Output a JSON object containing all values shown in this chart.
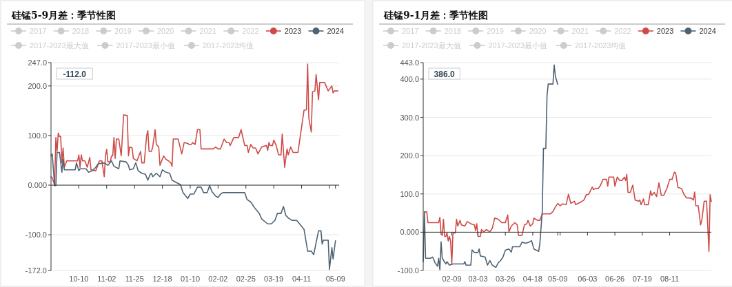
{
  "chart_data": [
    {
      "type": "line",
      "title": "硅锰5-9月差：季节性图",
      "legend": "top",
      "grid": "y",
      "xlim": [
        "2023-09-17",
        "2024-05-12"
      ],
      "xticks": [
        {
          "value": "2023-10-10",
          "label": "10-10"
        },
        {
          "value": "2023-11-02",
          "label": "11-02"
        },
        {
          "value": "2023-11-25",
          "label": "11-25"
        },
        {
          "value": "2023-12-18",
          "label": "12-18"
        },
        {
          "value": "2024-01-10",
          "label": "01-10"
        },
        {
          "value": "2024-02-02",
          "label": "02-02"
        },
        {
          "value": "2024-02-25",
          "label": "02-25"
        },
        {
          "value": "2024-03-19",
          "label": "03-19"
        },
        {
          "value": "2024-04-11",
          "label": "04-11"
        },
        {
          "value": "2024-05-04",
          "label": null
        },
        {
          "value": "2024-05-09",
          "label": "05-09"
        }
      ],
      "ylim": [
        -172,
        247
      ],
      "yticks": [
        {
          "value": -172,
          "label": "-172.0"
        },
        {
          "value": -100,
          "label": "-100.0"
        },
        {
          "value": 0,
          "label": "0.000"
        },
        {
          "value": 100,
          "label": "100.0"
        },
        {
          "value": 200,
          "label": "200.0"
        },
        {
          "value": 247,
          "label": "247.0"
        }
      ],
      "annotations": [
        "-112.0"
      ],
      "series": [
        {
          "name": "2017",
          "color": "#cccccc"
        },
        {
          "name": "2018",
          "color": "#cccccc"
        },
        {
          "name": "2019",
          "color": "#cccccc"
        },
        {
          "name": "2020",
          "color": "#cccccc"
        },
        {
          "name": "2021",
          "color": "#cccccc"
        },
        {
          "name": "2022",
          "color": "#cccccc"
        },
        {
          "name": "2023",
          "color": "#cd4b48",
          "x": [
            "2023-09-17",
            "2023-09-18",
            "2023-09-20",
            "2023-09-21",
            "2023-09-22",
            "2023-09-23",
            "2023-09-24",
            "2023-09-25",
            "2023-09-26",
            "2023-09-27",
            "2023-09-28",
            "2023-09-30",
            "2023-10-09",
            "2023-10-10",
            "2023-10-11",
            "2023-10-12",
            "2023-10-13",
            "2023-10-15",
            "2023-10-17",
            "2023-10-19",
            "2023-10-20",
            "2023-10-24",
            "2023-10-27",
            "2023-10-29",
            "2023-10-31",
            "2023-11-01",
            "2023-11-02",
            "2023-11-03",
            "2023-11-05",
            "2023-11-06",
            "2023-11-07",
            "2023-11-08",
            "2023-11-09",
            "2023-11-10",
            "2023-11-12",
            "2023-11-14",
            "2023-11-16",
            "2023-11-19",
            "2023-11-20",
            "2023-11-21",
            "2023-11-23",
            "2023-11-24",
            "2023-11-27",
            "2023-11-30",
            "2023-12-01",
            "2023-12-03",
            "2023-12-05",
            "2023-12-06",
            "2023-12-07",
            "2023-12-09",
            "2023-12-10",
            "2023-12-12",
            "2023-12-13",
            "2023-12-15",
            "2023-12-16",
            "2023-12-19",
            "2023-12-21",
            "2023-12-23",
            "2023-12-25",
            "2023-12-26",
            "2023-12-27",
            "2023-12-31",
            "2024-01-03",
            "2024-01-05",
            "2024-01-08",
            "2024-01-09",
            "2024-01-11",
            "2024-01-12",
            "2024-01-14",
            "2024-01-16",
            "2024-01-18",
            "2024-01-19",
            "2024-01-29",
            "2024-01-31",
            "2024-02-02",
            "2024-02-04",
            "2024-02-07",
            "2024-02-09",
            "2024-02-11",
            "2024-02-12",
            "2024-02-15",
            "2024-02-19",
            "2024-02-21",
            "2024-02-24",
            "2024-02-26",
            "2024-02-27",
            "2024-02-29",
            "2024-03-02",
            "2024-03-04",
            "2024-03-06",
            "2024-03-09",
            "2024-03-13",
            "2024-03-14",
            "2024-03-15",
            "2024-03-16",
            "2024-03-18",
            "2024-03-19",
            "2024-03-21",
            "2024-03-23",
            "2024-03-25",
            "2024-03-26",
            "2024-03-28",
            "2024-03-30",
            "2024-03-31",
            "2024-04-02",
            "2024-04-04",
            "2024-04-08",
            "2024-04-10",
            "2024-04-13",
            "2024-04-15",
            "2024-04-16",
            "2024-04-17",
            "2024-04-19",
            "2024-04-20",
            "2024-04-22",
            "2024-04-23",
            "2024-04-25",
            "2024-04-26",
            "2024-04-30",
            "2024-05-03",
            "2024-05-06",
            "2024-05-07",
            "2024-05-08",
            "2024-05-11"
          ],
          "values": [
            17,
            15,
            0,
            96,
            68,
            105,
            98,
            98,
            45,
            75,
            36,
            49,
            49,
            61,
            36,
            61,
            49,
            49,
            36,
            56,
            31,
            29,
            49,
            49,
            17,
            59,
            72,
            47,
            47,
            59,
            59,
            96,
            54,
            93,
            93,
            59,
            142,
            140,
            59,
            77,
            75,
            54,
            49,
            68,
            45,
            45,
            100,
            110,
            68,
            68,
            77,
            112,
            82,
            77,
            40,
            59,
            52,
            49,
            45,
            38,
            93,
            93,
            63,
            86,
            84,
            82,
            82,
            86,
            82,
            112,
            112,
            73,
            73,
            77,
            73,
            73,
            93,
            86,
            86,
            80,
            96,
            96,
            112,
            80,
            80,
            66,
            82,
            75,
            75,
            63,
            77,
            80,
            70,
            86,
            80,
            80,
            91,
            80,
            61,
            61,
            103,
            36,
            73,
            61,
            77,
            66,
            66,
            100,
            151,
            152,
            244,
            135,
            107,
            188,
            190,
            223,
            172,
            207,
            207,
            190,
            200,
            186,
            190,
            190
          ]
        },
        {
          "name": "2024",
          "color": "#4f6272",
          "x": [
            "2023-09-17",
            "2023-09-18",
            "2023-09-20",
            "2023-09-21",
            "2023-09-22",
            "2023-09-24",
            "2023-09-26",
            "2023-09-27",
            "2023-09-28",
            "2023-10-07",
            "2023-10-08",
            "2023-10-10",
            "2023-10-11",
            "2023-10-16",
            "2023-10-18",
            "2023-10-21",
            "2023-10-24",
            "2023-10-26",
            "2023-10-31",
            "2023-11-03",
            "2023-11-06",
            "2023-11-08",
            "2023-11-12",
            "2023-11-13",
            "2023-11-18",
            "2023-11-20",
            "2023-11-21",
            "2023-11-24",
            "2023-11-26",
            "2023-11-28",
            "2023-12-01",
            "2023-12-04",
            "2023-12-06",
            "2023-12-08",
            "2023-12-09",
            "2023-12-10",
            "2023-12-13",
            "2023-12-16",
            "2023-12-18",
            "2023-12-21",
            "2023-12-24",
            "2023-12-26",
            "2023-12-29",
            "2024-01-02",
            "2024-01-04",
            "2024-01-08",
            "2024-01-10",
            "2024-01-13",
            "2024-01-16",
            "2024-01-19",
            "2024-01-21",
            "2024-01-24",
            "2024-01-26",
            "2024-01-28",
            "2024-01-31",
            "2024-02-02",
            "2024-02-04",
            "2024-02-06",
            "2024-02-24",
            "2024-02-26",
            "2024-02-29",
            "2024-03-03",
            "2024-03-07",
            "2024-03-09",
            "2024-03-14",
            "2024-03-17",
            "2024-03-20",
            "2024-03-22",
            "2024-03-25",
            "2024-03-27",
            "2024-03-29",
            "2024-03-31",
            "2024-04-03",
            "2024-04-07",
            "2024-04-10",
            "2024-04-13",
            "2024-04-16",
            "2024-04-19",
            "2024-04-21",
            "2024-04-25",
            "2024-04-27",
            "2024-04-28",
            "2024-04-29",
            "2024-05-03",
            "2024-05-04",
            "2024-05-06",
            "2024-05-07",
            "2024-05-09"
          ],
          "values": [
            59,
            63,
            -1,
            -1,
            66,
            66,
            26,
            52,
            31,
            31,
            45,
            29,
            33,
            33,
            26,
            29,
            36,
            43,
            45,
            40,
            49,
            38,
            33,
            49,
            47,
            40,
            31,
            33,
            45,
            29,
            24,
            22,
            10,
            22,
            24,
            17,
            24,
            17,
            31,
            26,
            24,
            10,
            6,
            1,
            -15,
            -27,
            -18,
            -18,
            -4,
            -4,
            -15,
            -15,
            -1,
            -13,
            -22,
            -25,
            -18,
            -15,
            -15,
            -29,
            -34,
            -45,
            -57,
            -68,
            -78,
            -78,
            -71,
            -57,
            -57,
            -43,
            -61,
            -66,
            -71,
            -71,
            -80,
            -89,
            -133,
            -133,
            -140,
            -92,
            -92,
            -119,
            -111,
            -111,
            -170,
            -126,
            -149,
            -112
          ]
        },
        {
          "name": "2017-2023最大值",
          "color": "#cccccc"
        },
        {
          "name": "2017-2023最小值",
          "color": "#cccccc"
        },
        {
          "name": "2017-2023均值",
          "color": "#cccccc"
        }
      ]
    },
    {
      "type": "line",
      "title": "硅锰9-1月差：季节性图",
      "legend": "top",
      "grid": "y",
      "xlim": [
        "--01-16",
        "--09-15"
      ],
      "xticks": [
        {
          "value": "--02-09",
          "label": "02-09"
        },
        {
          "value": "--03-03",
          "label": "03-03"
        },
        {
          "value": "--03-26",
          "label": "03-26"
        },
        {
          "value": "--04-18",
          "label": "04-18"
        },
        {
          "value": "--05-09",
          "label": "05-09"
        },
        {
          "value": "--05-11",
          "label": null
        },
        {
          "value": "--06-03",
          "label": "06-03"
        },
        {
          "value": "--06-26",
          "label": "06-26"
        },
        {
          "value": "--07-19",
          "label": "07-19"
        },
        {
          "value": "--08-11",
          "label": "08-11"
        }
      ],
      "ylim": [
        -100,
        443
      ],
      "yticks": [
        {
          "value": -100,
          "label": "-100.0"
        },
        {
          "value": 0,
          "label": "0.000"
        },
        {
          "value": 100,
          "label": "100.0"
        },
        {
          "value": 200,
          "label": "200.0"
        },
        {
          "value": 300,
          "label": "300.0"
        },
        {
          "value": 400,
          "label": "400.0"
        },
        {
          "value": 443,
          "label": "443.0"
        }
      ],
      "annotations": [
        "386.0"
      ],
      "series": [
        {
          "name": "2017",
          "color": "#cccccc"
        },
        {
          "name": "2018",
          "color": "#cccccc"
        },
        {
          "name": "2019",
          "color": "#cccccc"
        },
        {
          "name": "2020",
          "color": "#cccccc"
        },
        {
          "name": "2021",
          "color": "#cccccc"
        },
        {
          "name": "2022",
          "color": "#cccccc"
        },
        {
          "name": "2023",
          "color": "#cd4b48",
          "x": [
            "--01-17",
            "--01-19",
            "--01-20",
            "--01-29",
            "--01-30",
            "--01-31",
            "--02-01",
            "--02-02",
            "--02-03",
            "--02-04",
            "--02-05",
            "--02-06",
            "--02-07",
            "--02-08",
            "--02-09",
            "--02-10",
            "--02-12",
            "--02-13",
            "--02-14",
            "--02-16",
            "--02-17",
            "--02-20",
            "--02-22",
            "--02-25",
            "--02-28",
            "--03-01",
            "--03-02",
            "--03-03",
            "--03-05",
            "--03-06",
            "--03-08",
            "--03-10",
            "--03-13",
            "--03-15",
            "--03-17",
            "--03-20",
            "--03-23",
            "--03-26",
            "--03-28",
            "--03-29",
            "--03-31",
            "--04-03",
            "--04-05",
            "--04-06",
            "--04-09",
            "--04-11",
            "--04-13",
            "--04-14",
            "--04-16",
            "--04-18",
            "--04-19",
            "--04-22",
            "--04-24",
            "--04-26",
            "--05-03",
            "--05-05",
            "--05-07",
            "--05-09",
            "--05-11",
            "--05-13",
            "--05-16",
            "--05-18",
            "--05-20",
            "--05-23",
            "--05-24",
            "--05-28",
            "--05-31",
            "--06-02",
            "--06-04",
            "--06-07",
            "--06-08",
            "--06-10",
            "--06-12",
            "--06-14",
            "--06-16",
            "--06-19",
            "--06-20",
            "--06-21",
            "--06-25",
            "--06-26",
            "--06-28",
            "--06-30",
            "--07-02",
            "--07-04",
            "--07-05",
            "--07-06",
            "--07-07",
            "--07-09",
            "--07-11",
            "--07-13",
            "--07-16",
            "--07-17",
            "--07-18",
            "--07-20",
            "--07-21",
            "--07-24",
            "--07-26",
            "--07-27",
            "--07-29",
            "--07-31",
            "--08-02",
            "--08-04",
            "--08-06",
            "--08-09",
            "--08-11",
            "--08-13",
            "--08-15",
            "--08-16",
            "--08-18",
            "--08-21",
            "--08-23",
            "--08-25",
            "--08-29",
            "--08-31",
            "--09-01",
            "--09-02",
            "--09-04",
            "--09-06",
            "--09-07",
            "--09-09",
            "--09-11",
            "--09-13",
            "--09-14",
            "--09-15"
          ],
          "values": [
            53,
            53,
            25,
            25,
            39,
            -5,
            -8,
            34,
            -11,
            -11,
            -2,
            -23,
            -11,
            -23,
            -83,
            -2,
            -2,
            34,
            16,
            31,
            19,
            16,
            28,
            22,
            19,
            4,
            22,
            -11,
            -11,
            7,
            1,
            7,
            1,
            10,
            37,
            34,
            25,
            25,
            45,
            1,
            16,
            25,
            19,
            -8,
            -8,
            19,
            22,
            31,
            16,
            22,
            37,
            31,
            31,
            48,
            48,
            54,
            66,
            75,
            69,
            74,
            72,
            99,
            75,
            81,
            72,
            78,
            84,
            98,
            99,
            118,
            111,
            115,
            114,
            123,
            138,
            138,
            120,
            144,
            144,
            120,
            144,
            135,
            135,
            144,
            135,
            151,
            104,
            104,
            123,
            84,
            81,
            84,
            72,
            87,
            72,
            72,
            108,
            96,
            104,
            93,
            129,
            96,
            96,
            117,
            138,
            138,
            157,
            155,
            117,
            114,
            99,
            90,
            89,
            84,
            105,
            69,
            69,
            19,
            31,
            81,
            81,
            -50,
            98,
            80
          ]
        },
        {
          "name": "2024",
          "color": "#4f6272",
          "x": [
            "--01-16",
            "--01-17",
            "--01-18",
            "--01-22",
            "--01-24",
            "--01-26",
            "--01-28",
            "--01-29",
            "--01-30",
            "--01-31",
            "--02-01",
            "--02-04",
            "--02-05",
            "--02-07",
            "--02-10",
            "--02-19",
            "--02-20",
            "--02-21",
            "--02-25",
            "--02-26",
            "--02-28",
            "--03-03",
            "--03-04",
            "--03-05",
            "--03-09",
            "--03-11",
            "--03-13",
            "--03-15",
            "--03-18",
            "--03-20",
            "--03-22",
            "--03-24",
            "--03-26",
            "--03-29",
            "--03-31",
            "--04-01",
            "--04-07",
            "--04-09",
            "--04-12",
            "--04-15",
            "--04-17",
            "--04-19",
            "--04-21",
            "--04-23",
            "--04-24",
            "--04-26",
            "--04-27",
            "--04-29",
            "--04-30",
            "--05-01",
            "--05-05",
            "--05-06",
            "--05-07",
            "--05-09"
          ],
          "values": [
            -77,
            53,
            -68,
            -68,
            -65,
            -80,
            -89,
            -68,
            -98,
            -25,
            -68,
            -83,
            -77,
            -86,
            -83,
            -83,
            -77,
            -86,
            -86,
            -46,
            -53,
            -53,
            -44,
            -62,
            -65,
            -86,
            -74,
            -86,
            -92,
            -80,
            -74,
            -65,
            -47,
            -44,
            -52,
            -38,
            -38,
            -26,
            -29,
            -26,
            -22,
            -44,
            -47,
            -50,
            -29,
            54,
            219,
            219,
            357,
            387,
            387,
            437,
            408,
            386
          ]
        },
        {
          "name": "2017-2023最大值",
          "color": "#cccccc"
        },
        {
          "name": "2017-2023最小值",
          "color": "#cccccc"
        },
        {
          "name": "2017-2023均值",
          "color": "#cccccc"
        }
      ]
    }
  ]
}
